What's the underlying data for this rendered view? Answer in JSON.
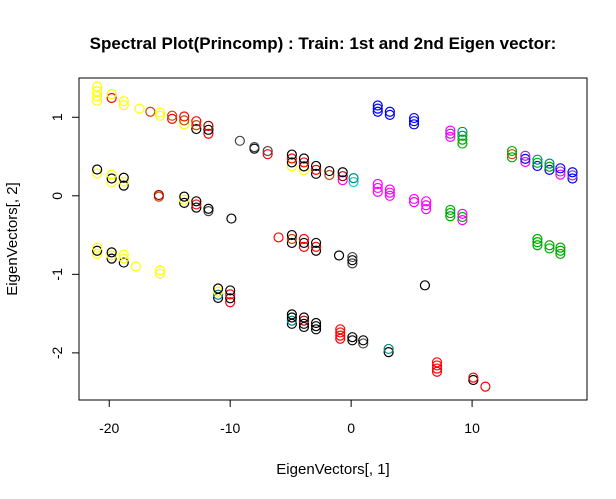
{
  "chart_data": {
    "type": "scatter",
    "title": "Spectral Plot(Princomp) : Train: 1st and 2nd Eigen vector:",
    "xlabel": "EigenVectors[, 1]",
    "ylabel": "EigenVectors[, 2]",
    "xlim": [
      -22.5,
      19.5
    ],
    "ylim": [
      -2.6,
      1.5
    ],
    "xticks": [
      -20,
      -10,
      0,
      10
    ],
    "yticks": [
      -2,
      -1,
      0,
      1
    ],
    "xtick_labels": [
      "-20",
      "-10",
      "0",
      "10"
    ],
    "ytick_labels": [
      "-2",
      "-1",
      "0",
      "1"
    ],
    "grid": false,
    "legend": "none",
    "marker": "open-circle",
    "colors": {
      "yellow": "#ffff00",
      "black": "#000000",
      "red": "#ff0000",
      "orange": "#cc4400",
      "darkred": "#aa0000",
      "gray": "#444444",
      "cyan": "#00cccc",
      "blue": "#0000ff",
      "magenta": "#ff00ff",
      "green": "#00aa00",
      "purple": "#9933cc",
      "teal": "#008888"
    },
    "clusters": [
      {
        "x": -21.0,
        "y": 1.3,
        "dy": 0.06,
        "n": 4,
        "colors": [
          "yellow",
          "yellow",
          "yellow",
          "yellow"
        ]
      },
      {
        "x": -19.8,
        "y": 1.27,
        "dy": 0.05,
        "n": 2,
        "colors": [
          "red",
          "yellow"
        ]
      },
      {
        "x": -18.8,
        "y": 1.18,
        "dy": 0.05,
        "n": 2,
        "colors": [
          "yellow",
          "yellow"
        ]
      },
      {
        "x": -17.5,
        "y": 1.11,
        "dy": 0.02,
        "n": 1,
        "colors": [
          "yellow"
        ]
      },
      {
        "x": -16.6,
        "y": 1.07,
        "dy": 0.02,
        "n": 1,
        "colors": [
          "orange"
        ]
      },
      {
        "x": -15.8,
        "y": 1.04,
        "dy": 0.04,
        "n": 2,
        "colors": [
          "yellow",
          "yellow"
        ]
      },
      {
        "x": -14.8,
        "y": 1.0,
        "dy": 0.04,
        "n": 2,
        "colors": [
          "red",
          "orange"
        ]
      },
      {
        "x": -13.8,
        "y": 0.96,
        "dy": 0.05,
        "n": 3,
        "colors": [
          "yellow",
          "orange",
          "red"
        ]
      },
      {
        "x": -12.8,
        "y": 0.9,
        "dy": 0.05,
        "n": 3,
        "colors": [
          "black",
          "orange",
          "red"
        ]
      },
      {
        "x": -11.8,
        "y": 0.84,
        "dy": 0.05,
        "n": 3,
        "colors": [
          "red",
          "black",
          "darkred"
        ]
      },
      {
        "x": -9.2,
        "y": 0.7,
        "dy": 0.02,
        "n": 1,
        "colors": [
          "gray"
        ]
      },
      {
        "x": -8.0,
        "y": 0.61,
        "dy": 0.02,
        "n": 2,
        "colors": [
          "black",
          "gray"
        ]
      },
      {
        "x": -6.9,
        "y": 0.55,
        "dy": 0.04,
        "n": 2,
        "colors": [
          "red",
          "gray"
        ]
      },
      {
        "x": -4.9,
        "y": 0.45,
        "dy": 0.05,
        "n": 4,
        "colors": [
          "yellow",
          "black",
          "red",
          "black"
        ]
      },
      {
        "x": -3.9,
        "y": 0.4,
        "dy": 0.05,
        "n": 4,
        "colors": [
          "yellow",
          "black",
          "red",
          "black"
        ]
      },
      {
        "x": -2.9,
        "y": 0.33,
        "dy": 0.05,
        "n": 3,
        "colors": [
          "black",
          "red",
          "black"
        ]
      },
      {
        "x": -1.8,
        "y": 0.29,
        "dy": 0.05,
        "n": 2,
        "colors": [
          "orange",
          "black"
        ]
      },
      {
        "x": -0.7,
        "y": 0.25,
        "dy": 0.05,
        "n": 3,
        "colors": [
          "magenta",
          "darkred",
          "black"
        ]
      },
      {
        "x": 0.2,
        "y": 0.2,
        "dy": 0.05,
        "n": 2,
        "colors": [
          "cyan",
          "teal"
        ]
      },
      {
        "x": 2.2,
        "y": 1.11,
        "dy": 0.04,
        "n": 3,
        "colors": [
          "blue",
          "blue",
          "blue"
        ]
      },
      {
        "x": 3.2,
        "y": 1.05,
        "dy": 0.04,
        "n": 2,
        "colors": [
          "blue",
          "blue"
        ]
      },
      {
        "x": 5.2,
        "y": 0.95,
        "dy": 0.04,
        "n": 3,
        "colors": [
          "blue",
          "blue",
          "blue"
        ]
      },
      {
        "x": 8.2,
        "y": 0.79,
        "dy": 0.04,
        "n": 3,
        "colors": [
          "magenta",
          "purple",
          "magenta"
        ]
      },
      {
        "x": 9.2,
        "y": 0.74,
        "dy": 0.05,
        "n": 4,
        "colors": [
          "green",
          "green",
          "green",
          "teal"
        ]
      },
      {
        "x": 13.3,
        "y": 0.53,
        "dy": 0.04,
        "n": 3,
        "colors": [
          "green",
          "orange",
          "green"
        ]
      },
      {
        "x": 14.4,
        "y": 0.47,
        "dy": 0.04,
        "n": 3,
        "colors": [
          "magenta",
          "blue",
          "purple"
        ]
      },
      {
        "x": 15.4,
        "y": 0.42,
        "dy": 0.04,
        "n": 3,
        "colors": [
          "blue",
          "green",
          "teal"
        ]
      },
      {
        "x": 16.4,
        "y": 0.37,
        "dy": 0.04,
        "n": 3,
        "colors": [
          "blue",
          "green",
          "teal"
        ]
      },
      {
        "x": 17.3,
        "y": 0.31,
        "dy": 0.04,
        "n": 3,
        "colors": [
          "magenta",
          "purple",
          "blue"
        ]
      },
      {
        "x": 18.3,
        "y": 0.26,
        "dy": 0.04,
        "n": 3,
        "colors": [
          "blue",
          "purple",
          "blue"
        ]
      },
      {
        "x": -21.0,
        "y": 0.31,
        "dy": 0.05,
        "n": 2,
        "colors": [
          "yellow",
          "black"
        ]
      },
      {
        "x": -19.8,
        "y": 0.22,
        "dy": 0.05,
        "n": 3,
        "colors": [
          "yellow",
          "black",
          "yellow"
        ]
      },
      {
        "x": -18.8,
        "y": 0.18,
        "dy": 0.05,
        "n": 3,
        "colors": [
          "black",
          "yellow",
          "black"
        ]
      },
      {
        "x": -15.9,
        "y": 0.0,
        "dy": 0.02,
        "n": 2,
        "colors": [
          "orange",
          "darkred"
        ]
      },
      {
        "x": -13.8,
        "y": -0.05,
        "dy": 0.04,
        "n": 3,
        "colors": [
          "black",
          "yellow",
          "black"
        ]
      },
      {
        "x": -12.8,
        "y": -0.11,
        "dy": 0.04,
        "n": 3,
        "colors": [
          "black",
          "red",
          "black"
        ]
      },
      {
        "x": -11.8,
        "y": -0.18,
        "dy": 0.03,
        "n": 2,
        "colors": [
          "gray",
          "black"
        ]
      },
      {
        "x": -9.9,
        "y": -0.29,
        "dy": 0.02,
        "n": 1,
        "colors": [
          "black"
        ]
      },
      {
        "x": 2.2,
        "y": 0.1,
        "dy": 0.05,
        "n": 3,
        "colors": [
          "magenta",
          "magenta",
          "magenta"
        ]
      },
      {
        "x": 3.2,
        "y": 0.04,
        "dy": 0.04,
        "n": 3,
        "colors": [
          "magenta",
          "magenta",
          "magenta"
        ]
      },
      {
        "x": 5.2,
        "y": -0.06,
        "dy": 0.04,
        "n": 2,
        "colors": [
          "magenta",
          "magenta"
        ]
      },
      {
        "x": 6.2,
        "y": -0.12,
        "dy": 0.05,
        "n": 3,
        "colors": [
          "magenta",
          "magenta",
          "magenta"
        ]
      },
      {
        "x": 8.2,
        "y": -0.22,
        "dy": 0.04,
        "n": 3,
        "colors": [
          "green",
          "green",
          "green"
        ]
      },
      {
        "x": 9.2,
        "y": -0.27,
        "dy": 0.04,
        "n": 3,
        "colors": [
          "magenta",
          "green",
          "magenta"
        ]
      },
      {
        "x": -21.0,
        "y": -0.7,
        "dy": 0.04,
        "n": 3,
        "colors": [
          "yellow",
          "black",
          "yellow"
        ]
      },
      {
        "x": -19.8,
        "y": -0.76,
        "dy": 0.04,
        "n": 3,
        "colors": [
          "black",
          "yellow",
          "black"
        ]
      },
      {
        "x": -18.8,
        "y": -0.8,
        "dy": 0.05,
        "n": 3,
        "colors": [
          "black",
          "yellow",
          "yellow"
        ]
      },
      {
        "x": -17.8,
        "y": -0.9,
        "dy": 0.02,
        "n": 1,
        "colors": [
          "yellow"
        ]
      },
      {
        "x": -15.8,
        "y": -0.97,
        "dy": 0.04,
        "n": 2,
        "colors": [
          "yellow",
          "yellow"
        ]
      },
      {
        "x": -6.0,
        "y": -0.53,
        "dy": 0.02,
        "n": 1,
        "colors": [
          "red"
        ]
      },
      {
        "x": -4.9,
        "y": -0.55,
        "dy": 0.05,
        "n": 3,
        "colors": [
          "black",
          "orange",
          "black"
        ]
      },
      {
        "x": -3.9,
        "y": -0.6,
        "dy": 0.05,
        "n": 3,
        "colors": [
          "red",
          "black",
          "red"
        ]
      },
      {
        "x": -2.9,
        "y": -0.65,
        "dy": 0.05,
        "n": 3,
        "colors": [
          "black",
          "red",
          "black"
        ]
      },
      {
        "x": -1.0,
        "y": -0.76,
        "dy": 0.02,
        "n": 1,
        "colors": [
          "black"
        ]
      },
      {
        "x": 0.1,
        "y": -0.82,
        "dy": 0.04,
        "n": 3,
        "colors": [
          "gray",
          "black",
          "gray"
        ]
      },
      {
        "x": 6.1,
        "y": -1.14,
        "dy": 0.02,
        "n": 1,
        "colors": [
          "black"
        ]
      },
      {
        "x": 15.4,
        "y": -0.59,
        "dy": 0.04,
        "n": 3,
        "colors": [
          "green",
          "green",
          "green"
        ]
      },
      {
        "x": 16.4,
        "y": -0.65,
        "dy": 0.04,
        "n": 2,
        "colors": [
          "green",
          "green"
        ]
      },
      {
        "x": 17.3,
        "y": -0.7,
        "dy": 0.04,
        "n": 3,
        "colors": [
          "green",
          "green",
          "green"
        ]
      },
      {
        "x": -11.0,
        "y": -1.24,
        "dy": 0.04,
        "n": 4,
        "colors": [
          "black",
          "teal",
          "yellow",
          "black"
        ]
      },
      {
        "x": -10.0,
        "y": -1.28,
        "dy": 0.05,
        "n": 4,
        "colors": [
          "red",
          "black",
          "red",
          "black"
        ]
      },
      {
        "x": -4.9,
        "y": -1.57,
        "dy": 0.04,
        "n": 4,
        "colors": [
          "black",
          "teal",
          "black",
          "black"
        ]
      },
      {
        "x": -3.9,
        "y": -1.61,
        "dy": 0.04,
        "n": 4,
        "colors": [
          "black",
          "black",
          "darkred",
          "black"
        ]
      },
      {
        "x": -2.9,
        "y": -1.66,
        "dy": 0.04,
        "n": 3,
        "colors": [
          "black",
          "black",
          "black"
        ]
      },
      {
        "x": -0.9,
        "y": -1.76,
        "dy": 0.04,
        "n": 4,
        "colors": [
          "red",
          "red",
          "red",
          "red"
        ]
      },
      {
        "x": 0.1,
        "y": -1.82,
        "dy": 0.04,
        "n": 2,
        "colors": [
          "black",
          "black"
        ]
      },
      {
        "x": 1.0,
        "y": -1.86,
        "dy": 0.04,
        "n": 2,
        "colors": [
          "gray",
          "black"
        ]
      },
      {
        "x": 3.1,
        "y": -1.97,
        "dy": 0.04,
        "n": 2,
        "colors": [
          "black",
          "teal"
        ]
      },
      {
        "x": 7.1,
        "y": -2.18,
        "dy": 0.04,
        "n": 4,
        "colors": [
          "red",
          "red",
          "red",
          "red"
        ]
      },
      {
        "x": 10.1,
        "y": -2.33,
        "dy": 0.03,
        "n": 2,
        "colors": [
          "black",
          "red"
        ]
      },
      {
        "x": 11.1,
        "y": -2.43,
        "dy": 0.02,
        "n": 1,
        "colors": [
          "red"
        ]
      }
    ]
  }
}
